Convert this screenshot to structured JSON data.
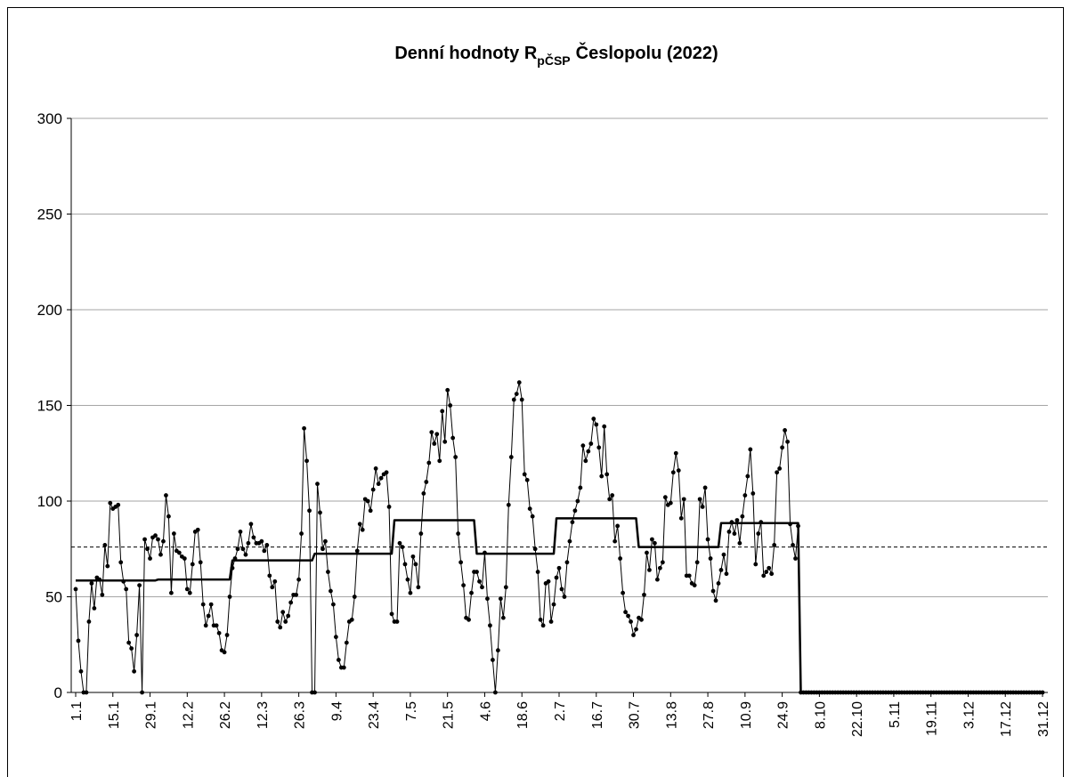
{
  "chart_data": {
    "type": "line",
    "title": {
      "main": "Denní hodnoty R",
      "sub": "pČSP",
      "rest": "Česlopolu (2022)"
    },
    "categories": [
      "1.1",
      null,
      null,
      null,
      null,
      null,
      null,
      null,
      null,
      null,
      null,
      null,
      null,
      null,
      "15.1",
      null,
      null,
      null,
      null,
      null,
      null,
      null,
      null,
      null,
      null,
      null,
      null,
      null,
      "29.1",
      null,
      null,
      null,
      null,
      null,
      null,
      null,
      null,
      null,
      null,
      null,
      null,
      null,
      "12.2",
      null,
      null,
      null,
      null,
      null,
      null,
      null,
      null,
      null,
      null,
      null,
      null,
      null,
      "26.2",
      null,
      null,
      null,
      null,
      null,
      null,
      null,
      null,
      null,
      null,
      null,
      null,
      null,
      "12.3",
      null,
      null,
      null,
      null,
      null,
      null,
      null,
      null,
      null,
      null,
      null,
      null,
      null,
      "26.3",
      null,
      null,
      null,
      null,
      null,
      null,
      null,
      null,
      null,
      null,
      null,
      null,
      null,
      "9.4",
      null,
      null,
      null,
      null,
      null,
      null,
      null,
      null,
      null,
      null,
      null,
      null,
      null,
      "23.4",
      null,
      null,
      null,
      null,
      null,
      null,
      null,
      null,
      null,
      null,
      null,
      null,
      null,
      "7.5",
      null,
      null,
      null,
      null,
      null,
      null,
      null,
      null,
      null,
      null,
      null,
      null,
      null,
      "21.5",
      null,
      null,
      null,
      null,
      null,
      null,
      null,
      null,
      null,
      null,
      null,
      null,
      null,
      "4.6",
      null,
      null,
      null,
      null,
      null,
      null,
      null,
      null,
      null,
      null,
      null,
      null,
      null,
      "18.6",
      null,
      null,
      null,
      null,
      null,
      null,
      null,
      null,
      null,
      null,
      null,
      null,
      null,
      "2.7",
      null,
      null,
      null,
      null,
      null,
      null,
      null,
      null,
      null,
      null,
      null,
      null,
      null,
      "16.7",
      null,
      null,
      null,
      null,
      null,
      null,
      null,
      null,
      null,
      null,
      null,
      null,
      null,
      "30.7",
      null,
      null,
      null,
      null,
      null,
      null,
      null,
      null,
      null,
      null,
      null,
      null,
      null,
      "13.8",
      null,
      null,
      null,
      null,
      null,
      null,
      null,
      null,
      null,
      null,
      null,
      null,
      null,
      "27.8",
      null,
      null,
      null,
      null,
      null,
      null,
      null,
      null,
      null,
      null,
      null,
      null,
      null,
      "10.9",
      null,
      null,
      null,
      null,
      null,
      null,
      null,
      null,
      null,
      null,
      null,
      null,
      null,
      "24.9",
      null,
      null,
      null,
      null,
      null,
      null,
      null,
      null,
      null,
      null,
      null,
      null,
      null,
      "8.10",
      null,
      null,
      null,
      null,
      null,
      null,
      null,
      null,
      null,
      null,
      null,
      null,
      null,
      "22.10",
      null,
      null,
      null,
      null,
      null,
      null,
      null,
      null,
      null,
      null,
      null,
      null,
      null,
      "5.11",
      null,
      null,
      null,
      null,
      null,
      null,
      null,
      null,
      null,
      null,
      null,
      null,
      null,
      "19.11",
      null,
      null,
      null,
      null,
      null,
      null,
      null,
      null,
      null,
      null,
      null,
      null,
      null,
      "3.12",
      null,
      null,
      null,
      null,
      null,
      null,
      null,
      null,
      null,
      null,
      null,
      null,
      null,
      "17.12",
      null,
      null,
      null,
      null,
      null,
      null,
      null,
      null,
      null,
      null,
      null,
      null,
      null,
      "31.12"
    ],
    "series": [
      {
        "color": "#000000",
        "markers": true,
        "width": 1,
        "values": [
          54,
          27,
          11,
          0,
          0,
          37,
          57,
          44,
          60,
          59,
          51,
          77,
          66,
          99,
          96,
          97,
          98,
          68,
          58,
          54,
          26,
          23,
          11,
          30,
          56,
          0,
          80,
          75,
          70,
          81,
          82,
          80,
          72,
          79,
          103,
          92,
          52,
          83,
          74,
          73,
          71,
          70,
          54,
          52,
          67,
          84,
          85,
          68,
          46,
          35,
          40,
          46,
          35,
          35,
          31,
          22,
          21,
          30,
          50,
          65,
          70,
          75,
          84,
          75,
          72,
          78,
          88,
          81,
          78,
          78,
          79,
          74,
          77,
          61,
          55,
          58,
          37,
          34,
          42,
          37,
          40,
          47,
          51,
          51,
          59,
          83,
          138,
          121,
          95,
          0,
          0,
          109,
          94,
          75,
          79,
          63,
          53,
          46,
          29,
          17,
          13,
          13,
          26,
          37,
          38,
          50,
          74,
          88,
          85,
          101,
          100,
          95,
          106,
          117,
          109,
          112,
          114,
          115,
          97,
          41,
          37,
          37,
          78,
          76,
          67,
          59,
          52,
          71,
          67,
          55,
          83,
          104,
          110,
          120,
          136,
          130,
          135,
          121,
          147,
          131,
          158,
          150,
          133,
          123,
          83,
          68,
          56,
          39,
          38,
          52,
          63,
          63,
          58,
          55,
          73,
          49,
          35,
          17,
          0,
          22,
          49,
          39,
          55,
          98,
          123,
          153,
          156,
          162,
          153,
          114,
          111,
          96,
          92,
          75,
          63,
          38,
          35,
          57,
          58,
          37,
          46,
          60,
          65,
          54,
          50,
          68,
          79,
          89,
          95,
          100,
          107,
          129,
          121,
          126,
          130,
          143,
          140,
          128,
          113,
          139,
          114,
          101,
          103,
          79,
          87,
          70,
          52,
          42,
          40,
          37,
          30,
          33,
          39,
          38,
          51,
          73,
          64,
          80,
          78,
          59,
          65,
          68,
          102,
          98,
          99,
          115,
          125,
          116,
          91,
          101,
          61,
          61,
          57,
          56,
          68,
          101,
          97,
          107,
          80,
          70,
          53,
          48,
          57,
          64,
          72,
          62,
          84,
          89,
          83,
          90,
          78,
          92,
          103,
          113,
          127,
          104,
          67,
          83,
          89,
          61,
          63,
          65,
          62,
          77,
          115,
          117,
          128,
          137,
          131,
          88,
          77,
          70,
          87,
          0,
          0,
          0,
          0,
          0,
          0,
          0,
          0,
          0,
          0,
          0,
          0,
          0,
          0,
          0,
          0,
          0,
          0,
          0,
          0,
          0,
          0,
          0,
          0,
          0,
          0,
          0,
          0,
          0,
          0,
          0,
          0,
          0,
          0,
          0,
          0,
          0,
          0,
          0,
          0,
          0,
          0,
          0,
          0,
          0,
          0,
          0,
          0,
          0,
          0,
          0,
          0,
          0,
          0,
          0,
          0,
          0,
          0,
          0,
          0,
          0,
          0,
          0,
          0,
          0,
          0,
          0,
          0,
          0,
          0,
          0,
          0,
          0,
          0,
          0,
          0,
          0,
          0,
          0,
          0,
          0,
          0,
          0,
          0,
          0,
          0,
          0,
          0,
          0,
          0,
          0,
          0
        ]
      },
      {
        "color": "#000000",
        "markers": false,
        "width": 2.5,
        "values": [
          58.5,
          58.5,
          58.5,
          58.5,
          58.5,
          58.5,
          58.5,
          58.5,
          58.5,
          58.5,
          58.5,
          58.5,
          58.5,
          58.5,
          58.5,
          58.5,
          58.5,
          58.5,
          58.5,
          58.5,
          58.5,
          58.5,
          58.5,
          58.5,
          58.5,
          58.5,
          58.5,
          58.5,
          58.5,
          58.5,
          58.5,
          59,
          59,
          59,
          59,
          59,
          59,
          59,
          59,
          59,
          59,
          59,
          59,
          59,
          59,
          59,
          59,
          59,
          59,
          59,
          59,
          59,
          59,
          59,
          59,
          59,
          59,
          59,
          59,
          69,
          69,
          69,
          69,
          69,
          69,
          69,
          69,
          69,
          69,
          69,
          69,
          69,
          69,
          69,
          69,
          69,
          69,
          69,
          69,
          69,
          69,
          69,
          69,
          69,
          69,
          69,
          69,
          69,
          69,
          69,
          72.5,
          72.5,
          72.5,
          72.5,
          72.5,
          72.5,
          72.5,
          72.5,
          72.5,
          72.5,
          72.5,
          72.5,
          72.5,
          72.5,
          72.5,
          72.5,
          72.5,
          72.5,
          72.5,
          72.5,
          72.5,
          72.5,
          72.5,
          72.5,
          72.5,
          72.5,
          72.5,
          72.5,
          72.5,
          72.5,
          90,
          90,
          90,
          90,
          90,
          90,
          90,
          90,
          90,
          90,
          90,
          90,
          90,
          90,
          90,
          90,
          90,
          90,
          90,
          90,
          90,
          90,
          90,
          90,
          90,
          90,
          90,
          90,
          90,
          90,
          90,
          72.5,
          72.5,
          72.5,
          72.5,
          72.5,
          72.5,
          72.5,
          72.5,
          72.5,
          72.5,
          72.5,
          72.5,
          72.5,
          72.5,
          72.5,
          72.5,
          72.5,
          72.5,
          72.5,
          72.5,
          72.5,
          72.5,
          72.5,
          72.5,
          72.5,
          72.5,
          72.5,
          72.5,
          72.5,
          72.5,
          91,
          91,
          91,
          91,
          91,
          91,
          91,
          91,
          91,
          91,
          91,
          91,
          91,
          91,
          91,
          91,
          91,
          91,
          91,
          91,
          91,
          91,
          91,
          91,
          91,
          91,
          91,
          91,
          91,
          91,
          91,
          76,
          76,
          76,
          76,
          76,
          76,
          76,
          76,
          76,
          76,
          76,
          76,
          76,
          76,
          76,
          76,
          76,
          76,
          76,
          76,
          76,
          76,
          76,
          76,
          76,
          76,
          76,
          76,
          76,
          76,
          76,
          88.5,
          88.5,
          88.5,
          88.5,
          88.5,
          88.5,
          88.5,
          88.5,
          88.5,
          88.5,
          88.5,
          88.5,
          88.5,
          88.5,
          88.5,
          88.5,
          88.5,
          88.5,
          88.5,
          88.5,
          88.5,
          88.5,
          88.5,
          88.5,
          88.5,
          88.5,
          88.5,
          88.5,
          88.5,
          88.5,
          0,
          0,
          0,
          0,
          0,
          0,
          0,
          0,
          0,
          0,
          0,
          0,
          0,
          0,
          0,
          0,
          0,
          0,
          0,
          0,
          0,
          0,
          0,
          0,
          0,
          0,
          0,
          0,
          0,
          0,
          0,
          0,
          0,
          0,
          0,
          0,
          0,
          0,
          0,
          0,
          0,
          0,
          0,
          0,
          0,
          0,
          0,
          0,
          0,
          0,
          0,
          0,
          0,
          0,
          0,
          0,
          0,
          0,
          0,
          0,
          0,
          0,
          0,
          0,
          0,
          0,
          0,
          0,
          0,
          0,
          0,
          0,
          0,
          0,
          0,
          0,
          0,
          0,
          0,
          0,
          0,
          0,
          0,
          0,
          0,
          0,
          0,
          0,
          0,
          0,
          0,
          0
        ]
      }
    ],
    "hlines": [
      {
        "value": 76,
        "color": "#000000",
        "style": "dashed"
      }
    ],
    "ylim": [
      0,
      300
    ],
    "yticks": [
      0,
      50,
      100,
      150,
      200,
      250,
      300
    ],
    "grid": true
  }
}
